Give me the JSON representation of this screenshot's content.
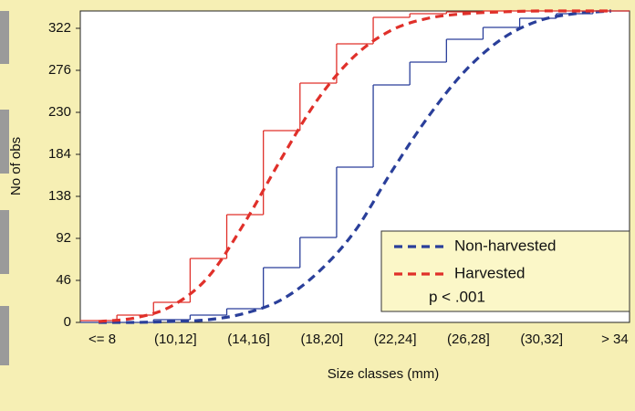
{
  "chart_data": {
    "type": "step",
    "x_label": "Size classes (mm)",
    "y_label": "No of obs",
    "categories": [
      "<= 8",
      null,
      "(10,12]",
      null,
      "(14,16]",
      null,
      "(18,20]",
      null,
      "(22,24]",
      null,
      "(26,28]",
      null,
      "(30,32]",
      null,
      "> 34"
    ],
    "series": [
      {
        "name": "Non-harvested",
        "color": "#2a3f9a",
        "values": [
          0,
          0,
          3,
          8,
          15,
          60,
          93,
          170,
          260,
          285,
          310,
          323,
          333,
          338,
          341
        ],
        "fit": [
          0,
          0,
          1,
          3,
          10,
          25,
          55,
          100,
          165,
          225,
          275,
          310,
          330,
          338,
          341
        ]
      },
      {
        "name": "Harvested",
        "color": "#e0302a",
        "values": [
          2,
          8,
          22,
          70,
          118,
          210,
          262,
          305,
          334,
          338,
          340,
          341,
          341,
          341,
          341
        ],
        "fit": [
          1,
          5,
          18,
          50,
          110,
          180,
          245,
          292,
          320,
          333,
          338,
          340,
          341,
          341,
          341
        ]
      }
    ],
    "annotation": "p < .001",
    "ylim": [
      0,
      341
    ],
    "yticks": [
      0,
      46,
      92,
      138,
      184,
      230,
      276,
      322
    ],
    "legend": "bottom-right"
  }
}
